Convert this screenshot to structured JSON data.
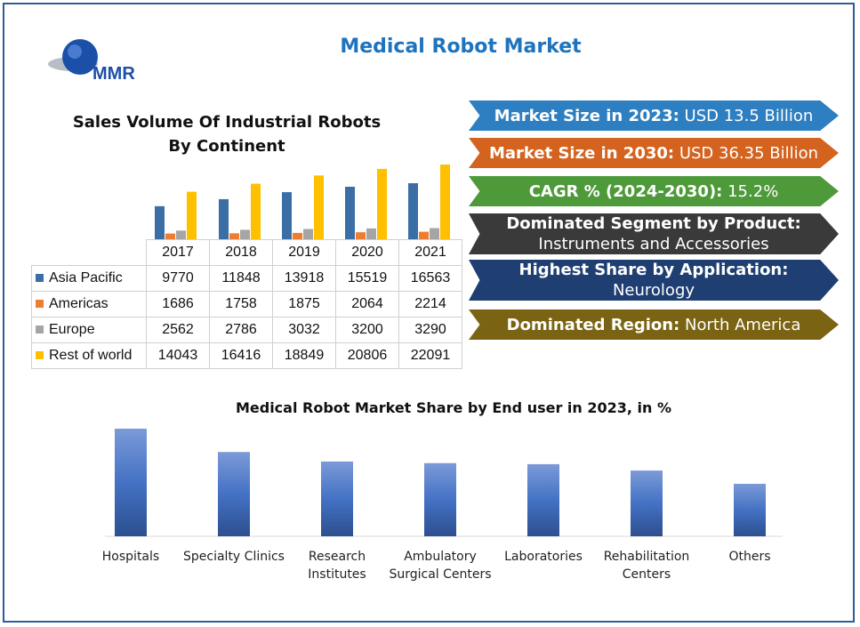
{
  "header": {
    "title": "Medical Robot Market",
    "logo_text": "MMR"
  },
  "banners": [
    {
      "label": "Market Size in 2023:",
      "value": "USD 13.5 Billion",
      "color": "#2e7fc1"
    },
    {
      "label": "Market Size in 2030:",
      "value": "USD 36.35 Billion",
      "color": "#d4631f"
    },
    {
      "label": "CAGR % (2024-2030):",
      "value": "15.2%",
      "color": "#4e9a3a"
    },
    {
      "label": "Dominated Segment by Product:",
      "value": "Instruments and Accessories",
      "color": "#3a3a3a"
    },
    {
      "label": "Highest Share by Application:",
      "value": "Neurology",
      "color": "#1f3f73"
    },
    {
      "label": "Dominated Region:",
      "value": "North America",
      "color": "#7a6414"
    }
  ],
  "chart_data": [
    {
      "type": "bar",
      "title": "Sales Volume Of Industrial Robots By Continent",
      "categories": [
        "2017",
        "2018",
        "2019",
        "2020",
        "2021"
      ],
      "series": [
        {
          "name": "Asia Pacific",
          "values": [
            9770,
            11848,
            13918,
            15519,
            16563
          ],
          "color": "#3a6ea5"
        },
        {
          "name": "Americas",
          "values": [
            1686,
            1758,
            1875,
            2064,
            2214
          ],
          "color": "#ed7d31"
        },
        {
          "name": "Europe",
          "values": [
            2562,
            2786,
            3032,
            3200,
            3290
          ],
          "color": "#a5a5a5"
        },
        {
          "name": "Rest of world",
          "values": [
            14043,
            16416,
            18849,
            20806,
            22091
          ],
          "color": "#ffc000"
        }
      ],
      "legend": "data-table"
    },
    {
      "type": "bar",
      "title": "Medical Robot Market Share by End user in 2023, in %",
      "categories": [
        "Hospitals",
        "Specialty Clinics",
        "Research Institutes",
        "Ambulatory Surgical Centers",
        "Laboratories",
        "Rehabilitation Centers",
        "Others"
      ],
      "category_lines": [
        [
          "Hospitals"
        ],
        [
          "Specialty Clinics"
        ],
        [
          "Research",
          "Institutes"
        ],
        [
          "Ambulatory",
          "Surgical Centers"
        ],
        [
          "Laboratories"
        ],
        [
          "Rehabilitation",
          "Centers"
        ],
        [
          "Others"
        ]
      ],
      "values": [
        20.3,
        15.9,
        14.1,
        13.8,
        13.6,
        12.4,
        9.9
      ],
      "color": "#4472c4",
      "grid": false
    }
  ]
}
